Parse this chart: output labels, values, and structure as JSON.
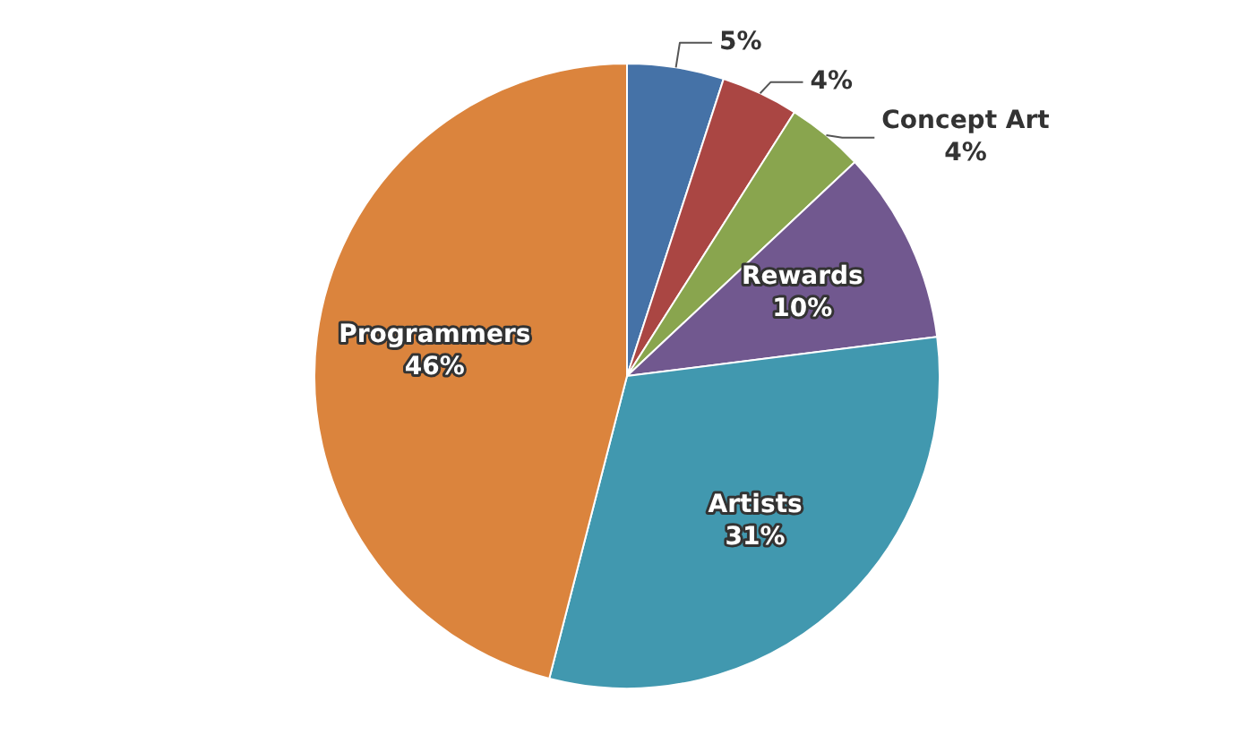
{
  "chart_data": {
    "type": "pie",
    "categories": [
      null,
      null,
      "Concept Art",
      "Rewards",
      "Artists",
      "Programmers"
    ],
    "values": [
      5,
      4,
      4,
      10,
      31,
      46
    ],
    "colors": [
      "#4572a7",
      "#aa4643",
      "#89a54e",
      "#71588f",
      "#4198af",
      "#db843d"
    ],
    "value_labels": [
      "5%",
      "4%",
      "4%",
      "10%",
      "31%",
      "46%"
    ]
  }
}
